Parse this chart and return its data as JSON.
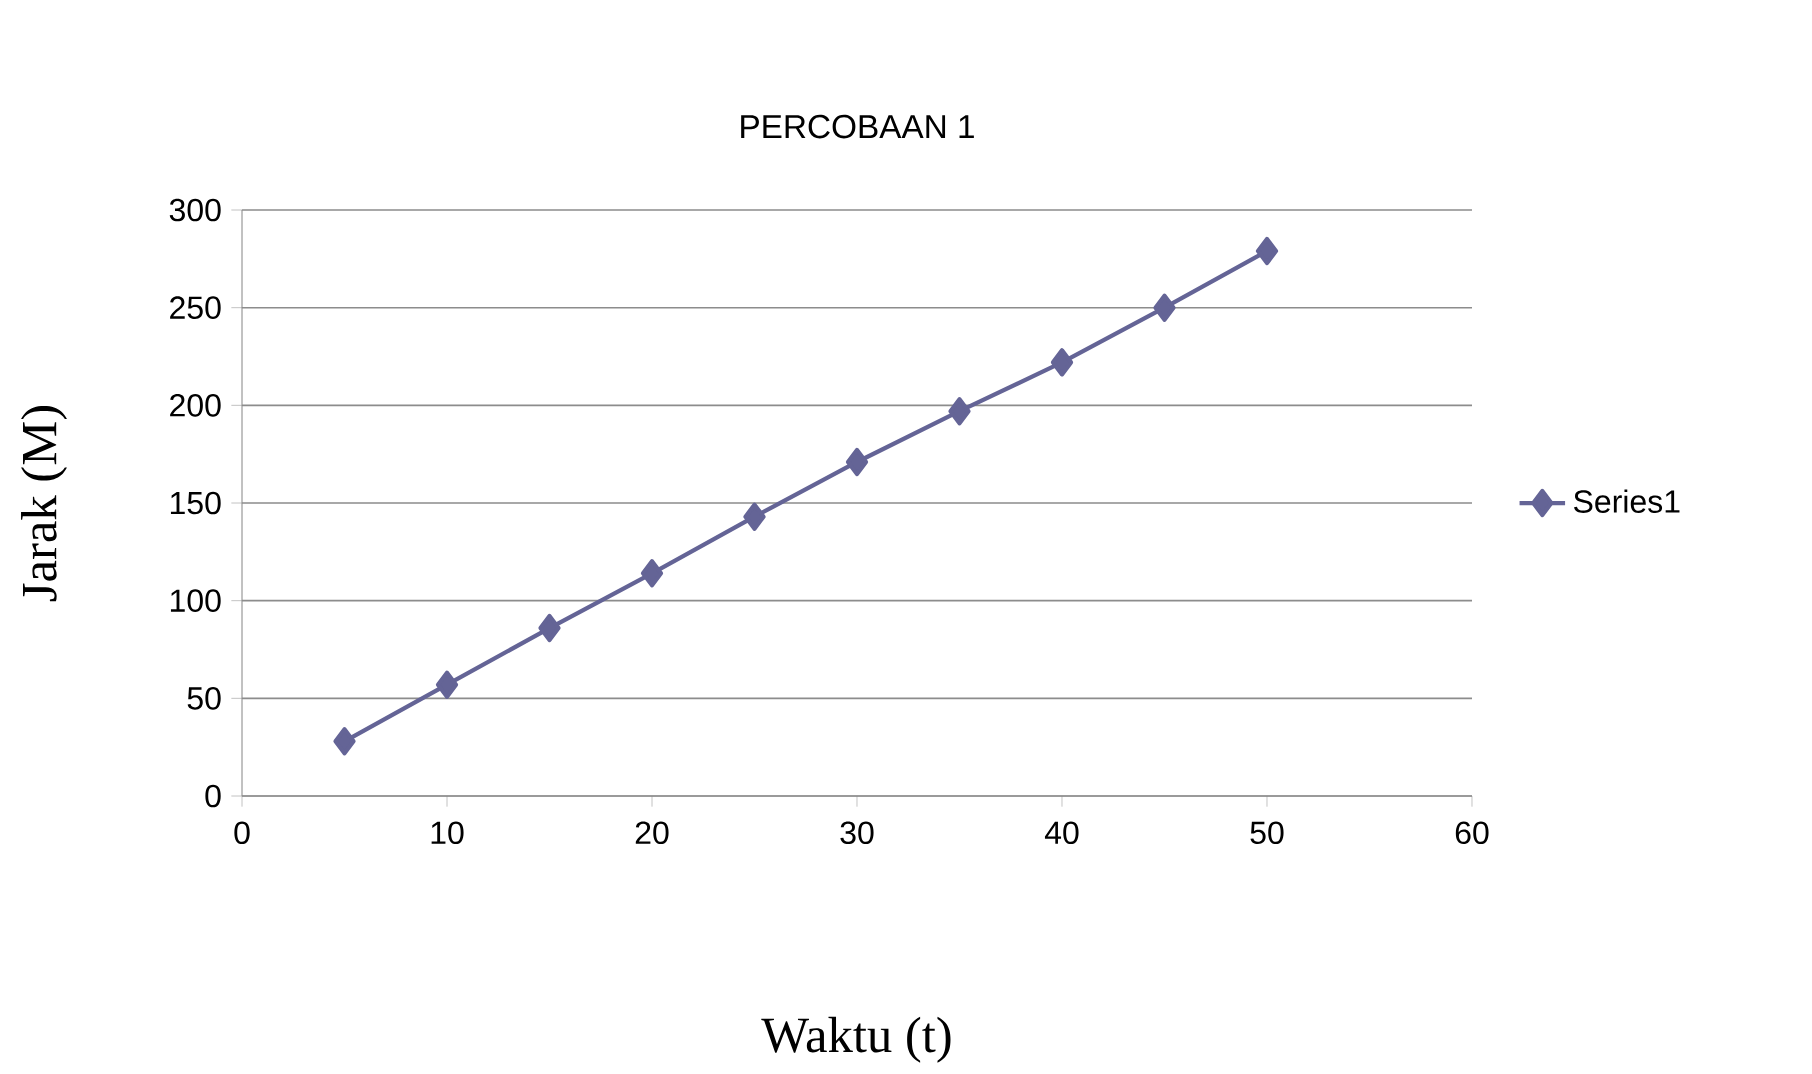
{
  "chart_data": {
    "type": "line",
    "title": "PERCOBAAN 1",
    "xlabel": "Waktu (t)",
    "ylabel": "Jarak (M)",
    "x": [
      5,
      10,
      15,
      20,
      25,
      30,
      35,
      40,
      45,
      50
    ],
    "series": [
      {
        "name": "Series1",
        "color": "#646496",
        "values": [
          28,
          57,
          86,
          114,
          143,
          171,
          197,
          222,
          250,
          279
        ]
      }
    ],
    "xlim": [
      0,
      60
    ],
    "xticks": [
      0,
      10,
      20,
      30,
      40,
      50,
      60
    ],
    "ylim": [
      0,
      300
    ],
    "yticks": [
      0,
      50,
      100,
      150,
      200,
      250,
      300
    ],
    "grid": "y",
    "legend": "right",
    "marker": "diamond",
    "line_style": "solid"
  }
}
